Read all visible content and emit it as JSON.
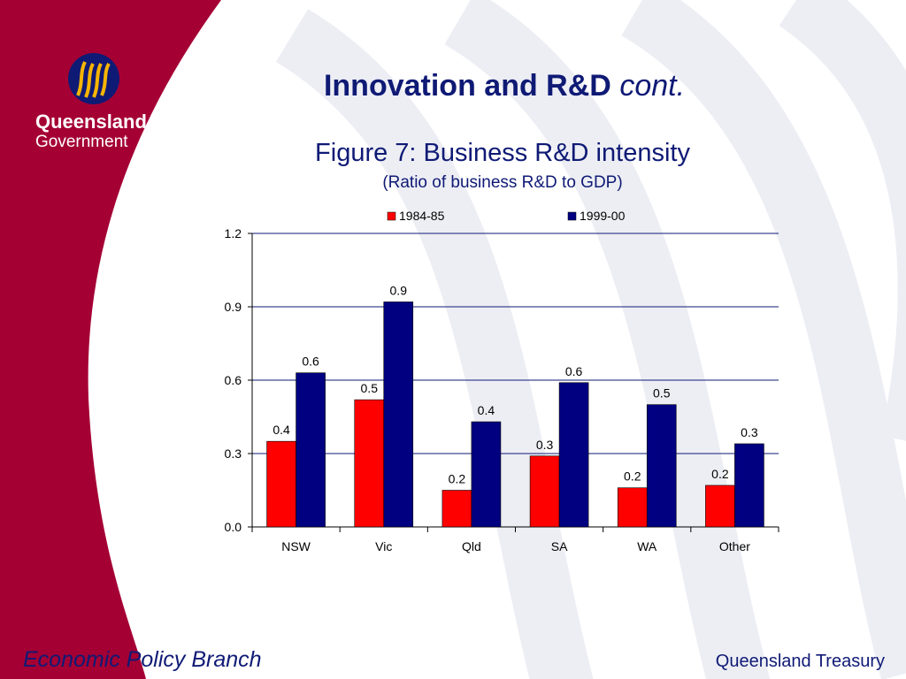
{
  "slide": {
    "heading": "Innovation and R&D",
    "heading_suffix": "cont.",
    "logo_line1": "Queensland",
    "logo_line2": "Government",
    "footer_left": "Economic Policy Branch",
    "footer_right": "Queensland Treasury"
  },
  "colors": {
    "maroon": "#a50034",
    "navy": "#0f1a75",
    "bar_red": "#ff0000",
    "bar_navy": "#000080",
    "logo_gold": "#f7b500"
  },
  "icons": [
    "queensland-government-logo-icon"
  ],
  "chart_data": {
    "type": "bar",
    "title": "Figure 7: Business R&D intensity",
    "subtitle": "(Ratio of business R&D to GDP)",
    "categories": [
      "NSW",
      "Vic",
      "Qld",
      "SA",
      "WA",
      "Other"
    ],
    "series": [
      {
        "name": "1984-85",
        "values": [
          0.35,
          0.52,
          0.15,
          0.29,
          0.16,
          0.17
        ],
        "labels": [
          "0.4",
          "0.5",
          "0.2",
          "0.3",
          "0.2",
          "0.2"
        ],
        "color": "#ff0000"
      },
      {
        "name": "1999-00",
        "values": [
          0.63,
          0.92,
          0.43,
          0.59,
          0.5,
          0.34
        ],
        "labels": [
          "0.6",
          "0.9",
          "0.4",
          "0.6",
          "0.5",
          "0.3"
        ],
        "color": "#000080"
      }
    ],
    "yticks": [
      "0.0",
      "0.3",
      "0.6",
      "0.9",
      "1.2"
    ],
    "ylim": [
      0,
      1.2
    ],
    "grid": true,
    "legend": "top"
  }
}
